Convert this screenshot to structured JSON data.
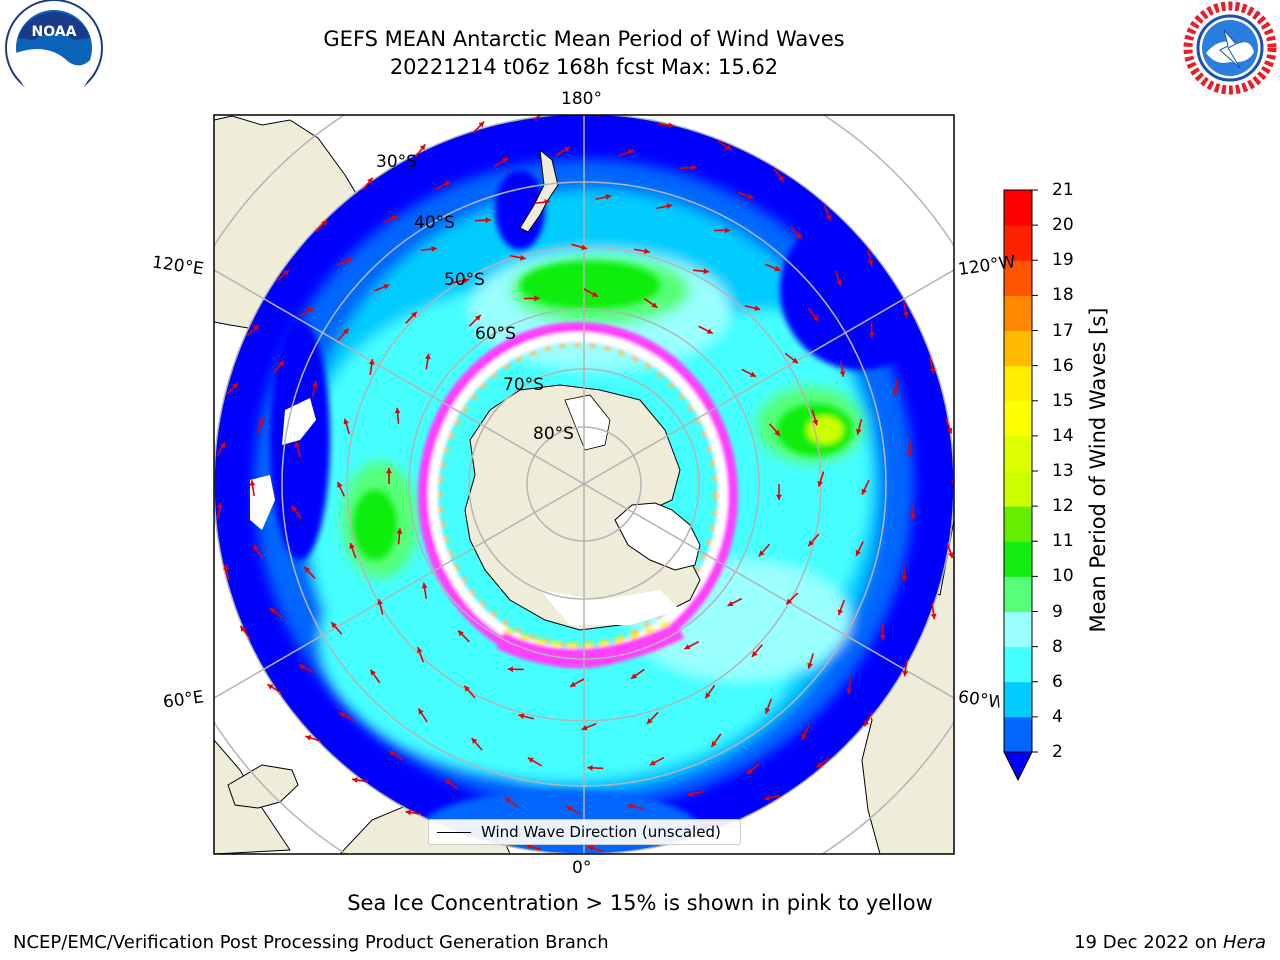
{
  "title": {
    "line1": "GEFS MEAN Antarctic Mean Period of Wind Waves",
    "line2": "20221214 t06z 168h fcst   Max: 15.62"
  },
  "caption": "Sea Ice Concentration > 15% is shown in pink to yellow",
  "credit_left": "NCEP/EMC/Verification Post Processing Product Generation Branch",
  "credit_right_prefix": "19 Dec 2022 on ",
  "credit_right_host": "Hera",
  "legend_label": "Wind Wave Direction (unscaled)",
  "logos": {
    "left": {
      "name": "NOAA",
      "ring_text": "NATIONAL OCEANIC AND ATMOSPHERIC ADMINISTRATION · U.S. DEPARTMENT OF COMMERCE"
    },
    "right": {
      "name": "NATIONAL WEATHER SERVICE"
    }
  },
  "map": {
    "projection": "South Polar Stereographic",
    "longitude_labels": {
      "top": "180°",
      "bottom": "0°",
      "left_upper": "120°E",
      "left_lower": "60°E",
      "right_upper": "120°W",
      "right_lower": "60°W"
    },
    "latitude_labels": [
      "30°S",
      "40°S",
      "50°S",
      "60°S",
      "70°S",
      "80°S"
    ],
    "colors": {
      "land": "#efedd9",
      "ice_white": "#ffffff",
      "ice_pink": "#ff40ff",
      "arrows": "#e60000",
      "grid": "#b4b4b4"
    }
  },
  "colorbar": {
    "label": "Mean Period of Wind Waves [s]",
    "ticks": [
      "2",
      "4",
      "6",
      "8",
      "9",
      "10",
      "11",
      "12",
      "13",
      "14",
      "15",
      "16",
      "17",
      "18",
      "19",
      "20",
      "21"
    ],
    "colors": [
      "#0066ff",
      "#00ccff",
      "#44ffff",
      "#99ffff",
      "#55ff77",
      "#11ee11",
      "#66ee00",
      "#ccff00",
      "#ddff00",
      "#ffff00",
      "#ffee00",
      "#ffbb00",
      "#ff8800",
      "#ff5500",
      "#ff2200",
      "#ff0000"
    ],
    "under_color": "#0000ff"
  }
}
